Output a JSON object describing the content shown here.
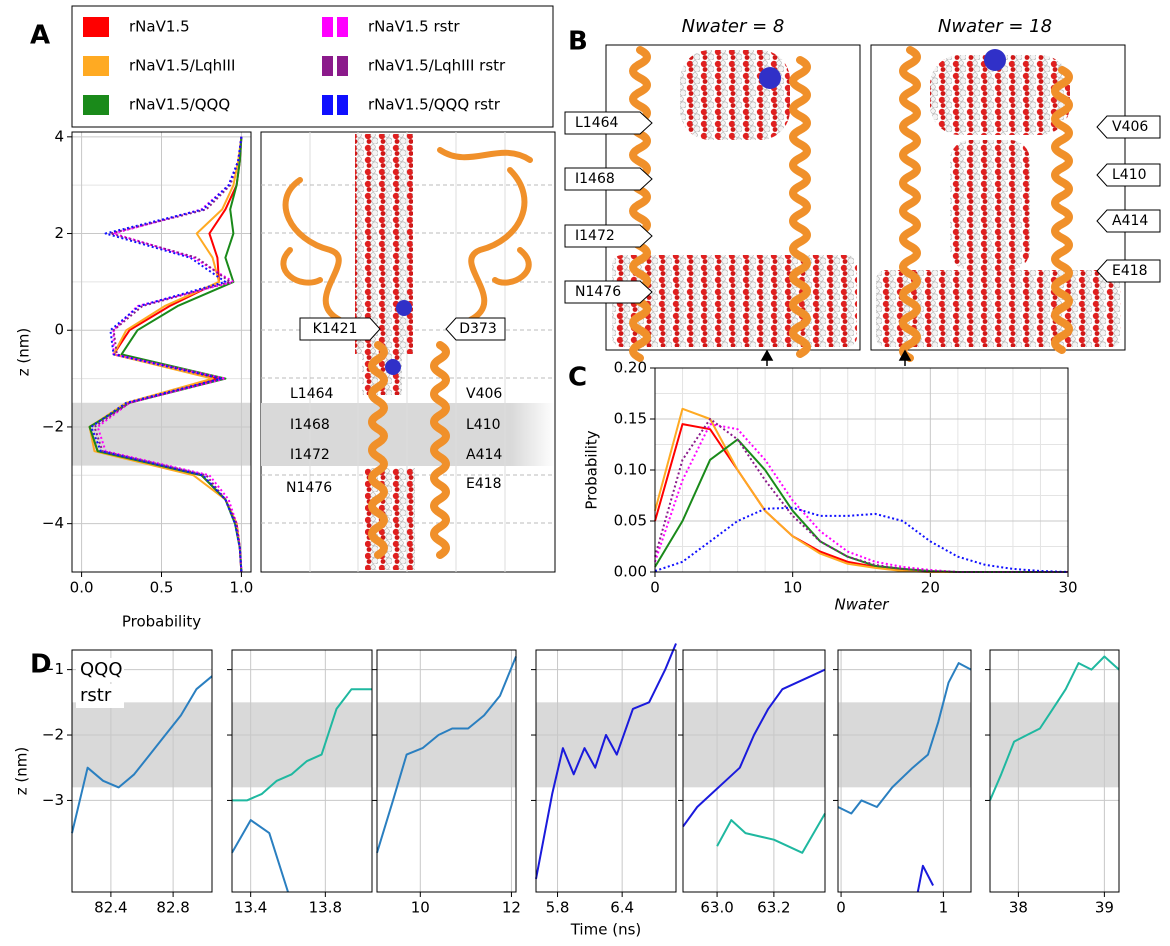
{
  "figure": {
    "panel_labels": [
      "A",
      "B",
      "C",
      "D"
    ],
    "panel_a_image": {
      "pore_labels": [
        "K1421",
        "D373"
      ],
      "left_labels": [
        "L1464",
        "I1468",
        "I1472",
        "N1476"
      ],
      "right_labels": [
        "V406",
        "L410",
        "A414",
        "E418"
      ]
    },
    "panel_b_images": [
      {
        "title": "Nwater = 8",
        "labels": [
          "L1464",
          "I1468",
          "I1472",
          "N1476"
        ]
      },
      {
        "title": "Nwater = 18",
        "labels": [
          "V406",
          "L410",
          "A414",
          "E418"
        ]
      }
    ]
  },
  "chart_data": [
    {
      "type": "line",
      "orientation": "horizontal",
      "x_label": "Probability",
      "y_label": "z (nm)",
      "y": [
        4,
        3.5,
        3,
        2.5,
        2,
        1.5,
        1,
        0.5,
        0,
        -0.5,
        -1,
        -1.5,
        -2,
        -2.5,
        -3,
        -3.5,
        -4,
        -4.5,
        -5
      ],
      "series": [
        {
          "name": "rNaV1.5",
          "color": "#ff0000",
          "line_style": "solid",
          "values": [
            1,
            0.99,
            0.97,
            0.9,
            0.8,
            0.85,
            0.86,
            0.55,
            0.3,
            0.2,
            0.85,
            0.3,
            0.05,
            0.1,
            0.75,
            0.9,
            0.97,
            0.99,
            1
          ]
        },
        {
          "name": "rNaV1.5/LqhIII",
          "color": "#ffaa22",
          "line_style": "solid",
          "values": [
            1,
            0.98,
            0.95,
            0.88,
            0.72,
            0.82,
            0.86,
            0.52,
            0.28,
            0.2,
            0.82,
            0.28,
            0.05,
            0.08,
            0.7,
            0.9,
            0.97,
            0.99,
            1
          ]
        },
        {
          "name": "rNaV1.5/QQQ",
          "color": "#1a8a1a",
          "line_style": "solid",
          "values": [
            1,
            0.99,
            0.97,
            0.93,
            0.95,
            0.9,
            0.95,
            0.6,
            0.35,
            0.25,
            0.9,
            0.3,
            0.05,
            0.1,
            0.75,
            0.9,
            0.96,
            0.99,
            1
          ]
        },
        {
          "name": "rNaV1.5 rstr",
          "color": "#ff00ff",
          "line_style": "dotted",
          "values": [
            1,
            0.98,
            0.92,
            0.75,
            0.2,
            0.7,
            0.95,
            0.35,
            0.2,
            0.2,
            0.9,
            0.3,
            0.1,
            0.15,
            0.8,
            0.92,
            0.97,
            0.99,
            1
          ]
        },
        {
          "name": "rNaV1.5/LqhIII rstr",
          "color": "#8b1a8b",
          "line_style": "dotted",
          "values": [
            1,
            0.98,
            0.93,
            0.78,
            0.18,
            0.72,
            0.93,
            0.38,
            0.2,
            0.22,
            0.88,
            0.3,
            0.08,
            0.13,
            0.78,
            0.9,
            0.97,
            0.99,
            1
          ]
        },
        {
          "name": "rNaV1.5/QQQ rstr",
          "color": "#1010ff",
          "line_style": "dotted",
          "values": [
            1,
            0.98,
            0.92,
            0.76,
            0.15,
            0.68,
            0.9,
            0.36,
            0.18,
            0.2,
            0.87,
            0.28,
            0.06,
            0.12,
            0.76,
            0.9,
            0.96,
            0.99,
            1
          ]
        }
      ],
      "xlim": [
        -0.06,
        1.06
      ],
      "xticks": [
        {
          "value": 0,
          "label": "0.0"
        },
        0.5,
        {
          "value": 1,
          "label": "1.0"
        }
      ],
      "ylim": [
        -5,
        4.1
      ],
      "yticks": [
        {
          "value": -4,
          "label": "−4"
        },
        {
          "value": -2,
          "label": "−2"
        },
        0,
        2,
        4
      ],
      "y_minor_ticks": [
        -3,
        -1,
        1,
        3
      ],
      "band": [
        -2.8,
        -1.5
      ],
      "grid": true
    },
    {
      "type": "line",
      "x_label": "Nwater",
      "y_label": "Probability",
      "x": [
        0,
        2,
        4,
        6,
        8,
        10,
        12,
        14,
        16,
        18,
        20,
        22,
        24,
        26,
        28,
        30
      ],
      "series": [
        {
          "color": "#ff0000",
          "line_style": "solid",
          "values": [
            0.05,
            0.145,
            0.14,
            0.1,
            0.06,
            0.035,
            0.02,
            0.01,
            0.005,
            0.002,
            0,
            0,
            0,
            0,
            0,
            0
          ]
        },
        {
          "color": "#ffaa22",
          "line_style": "solid",
          "values": [
            0.06,
            0.16,
            0.15,
            0.1,
            0.06,
            0.035,
            0.018,
            0.008,
            0.004,
            0.001,
            0,
            0,
            0,
            0,
            0,
            0
          ]
        },
        {
          "color": "#1a8a1a",
          "line_style": "solid",
          "values": [
            0.005,
            0.05,
            0.11,
            0.13,
            0.1,
            0.06,
            0.03,
            0.015,
            0.006,
            0.003,
            0.001,
            0,
            0,
            0,
            0,
            0
          ]
        },
        {
          "color": "#ff00ff",
          "line_style": "dotted",
          "values": [
            0.01,
            0.09,
            0.145,
            0.14,
            0.11,
            0.07,
            0.04,
            0.02,
            0.01,
            0.005,
            0.002,
            0,
            0,
            0,
            0,
            0
          ]
        },
        {
          "color": "#8b1a8b",
          "line_style": "dotted",
          "values": [
            0.015,
            0.11,
            0.15,
            0.13,
            0.09,
            0.055,
            0.03,
            0.015,
            0.007,
            0.003,
            0.001,
            0,
            0,
            0,
            0,
            0
          ]
        },
        {
          "color": "#1010ff",
          "line_style": "dotted",
          "values": [
            0.001,
            0.01,
            0.03,
            0.05,
            0.062,
            0.063,
            0.055,
            0.055,
            0.057,
            0.05,
            0.03,
            0.015,
            0.007,
            0.003,
            0.001,
            0
          ]
        }
      ],
      "xlim": [
        0,
        30
      ],
      "xticks": [
        0,
        10,
        20,
        30
      ],
      "ylim": [
        0,
        0.2
      ],
      "yticks": [
        {
          "value": 0,
          "label": "0.00"
        },
        0.05,
        {
          "value": 0.1,
          "label": "0.10"
        },
        0.15,
        {
          "value": 0.2,
          "label": "0.20"
        }
      ],
      "x_minor_ticks": [
        2,
        4,
        6,
        8,
        12,
        14,
        16,
        18,
        22,
        24,
        26,
        28
      ],
      "y_minor_ticks": [
        0.025,
        0.075,
        0.125,
        0.175
      ],
      "grid": true
    },
    {
      "type": "line",
      "y_label": "z (nm)",
      "annotation": [
        "QQQ",
        "rstr"
      ],
      "series": [
        {
          "color": "#2a7fc0",
          "x": [
            82.15,
            82.25,
            82.35,
            82.45,
            82.55,
            82.65,
            82.75,
            82.85,
            82.95,
            83.05
          ],
          "values": [
            -3.5,
            -2.5,
            -2.7,
            -2.8,
            -2.6,
            -2.3,
            -2.0,
            -1.7,
            -1.3,
            -1.1
          ]
        }
      ],
      "xlim": [
        82.15,
        83.05
      ],
      "xticks": [
        82.4,
        82.8
      ],
      "ylim": [
        -4.4,
        -0.7
      ],
      "yticks": [
        {
          "value": -3,
          "label": "−3"
        },
        {
          "value": -2,
          "label": "−2"
        },
        {
          "value": -1,
          "label": "−1"
        }
      ],
      "band": [
        -2.8,
        -1.5
      ],
      "grid": true
    },
    {
      "type": "line",
      "series": [
        {
          "color": "#1fb8a0",
          "x": [
            13.3,
            13.38,
            13.46,
            13.54,
            13.62,
            13.7,
            13.78,
            13.86,
            13.94,
            14.05
          ],
          "values": [
            -3.0,
            -3.0,
            -2.9,
            -2.7,
            -2.6,
            -2.4,
            -2.3,
            -1.6,
            -1.3,
            -1.3
          ]
        },
        {
          "color": "#2a7fc0",
          "x": [
            13.3,
            13.4,
            13.5,
            13.6
          ],
          "values": [
            -3.8,
            -3.3,
            -3.5,
            -4.4
          ]
        }
      ],
      "xlim": [
        13.3,
        14.05
      ],
      "xticks": [
        13.4,
        13.8
      ],
      "ylim": [
        -4.4,
        -0.7
      ],
      "yticks": [
        -3,
        -2,
        -1
      ],
      "show_ytick_labels": false,
      "band": [
        -2.8,
        -1.5
      ],
      "grid": true
    },
    {
      "type": "line",
      "series": [
        {
          "color": "#2a7fc0",
          "x": [
            9.05,
            9.4,
            9.7,
            10.05,
            10.4,
            10.7,
            11.05,
            11.4,
            11.75,
            12.1
          ],
          "values": [
            -3.8,
            -3.0,
            -2.3,
            -2.2,
            -2.0,
            -1.9,
            -1.9,
            -1.7,
            -1.4,
            -0.8
          ]
        }
      ],
      "xlim": [
        9.05,
        12.1
      ],
      "xticks": [
        10,
        12
      ],
      "ylim": [
        -4.4,
        -0.7
      ],
      "yticks": [
        -3,
        -2,
        -1
      ],
      "show_ytick_labels": false,
      "band": [
        -2.8,
        -1.5
      ],
      "grid": true
    },
    {
      "type": "line",
      "x_label": "Time (ns)",
      "series": [
        {
          "color": "#1a1adc",
          "x": [
            5.6,
            5.75,
            5.85,
            5.95,
            6.05,
            6.15,
            6.25,
            6.35,
            6.5,
            6.65,
            6.8,
            6.9
          ],
          "values": [
            -4.2,
            -2.9,
            -2.2,
            -2.6,
            -2.2,
            -2.5,
            -2.0,
            -2.3,
            -1.6,
            -1.5,
            -1.0,
            -0.6
          ]
        }
      ],
      "xlim": [
        5.6,
        6.9
      ],
      "xticks": [
        5.8,
        6.4
      ],
      "ylim": [
        -4.4,
        -0.7
      ],
      "yticks": [
        -3,
        -2,
        -1
      ],
      "show_ytick_labels": false,
      "band": [
        -2.8,
        -1.5
      ],
      "grid": true
    },
    {
      "type": "line",
      "series": [
        {
          "color": "#1a1adc",
          "x": [
            62.88,
            62.93,
            62.98,
            63.03,
            63.08,
            63.13,
            63.18,
            63.23,
            63.28,
            63.33,
            63.38
          ],
          "values": [
            -3.4,
            -3.1,
            -2.9,
            -2.7,
            -2.5,
            -2.0,
            -1.6,
            -1.3,
            -1.2,
            -1.1,
            -1.0
          ]
        },
        {
          "color": "#1fb8a0",
          "x": [
            63.0,
            63.05,
            63.1,
            63.2,
            63.3,
            63.38
          ],
          "values": [
            -3.7,
            -3.3,
            -3.5,
            -3.6,
            -3.8,
            -3.2
          ]
        }
      ],
      "xlim": [
        62.88,
        63.38
      ],
      "xticks": [
        {
          "value": 63,
          "label": "63.0"
        },
        63.2
      ],
      "ylim": [
        -4.4,
        -0.7
      ],
      "yticks": [
        -3,
        -2,
        -1
      ],
      "show_ytick_labels": false,
      "band": [
        -2.8,
        -1.5
      ],
      "grid": true
    },
    {
      "type": "line",
      "series": [
        {
          "color": "#2a7fc0",
          "x": [
            -0.03,
            0.1,
            0.2,
            0.35,
            0.5,
            0.7,
            0.85,
            0.95,
            1.05,
            1.15,
            1.27
          ],
          "values": [
            -3.1,
            -3.2,
            -3.0,
            -3.1,
            -2.8,
            -2.5,
            -2.3,
            -1.8,
            -1.2,
            -0.9,
            -1.0
          ]
        },
        {
          "color": "#1a1adc",
          "x": [
            0.75,
            0.8,
            0.9
          ],
          "values": [
            -4.4,
            -4.0,
            -4.3
          ]
        }
      ],
      "xlim": [
        -0.03,
        1.27
      ],
      "xticks": [
        0,
        1
      ],
      "ylim": [
        -4.4,
        -0.7
      ],
      "yticks": [
        -3,
        -2,
        -1
      ],
      "show_ytick_labels": false,
      "band": [
        -2.8,
        -1.5
      ],
      "grid": true
    },
    {
      "type": "line",
      "series": [
        {
          "color": "#1fb8a0",
          "x": [
            37.67,
            37.8,
            37.95,
            38.1,
            38.25,
            38.4,
            38.55,
            38.7,
            38.85,
            39.0,
            39.17
          ],
          "values": [
            -3.0,
            -2.6,
            -2.1,
            -2.0,
            -1.9,
            -1.6,
            -1.3,
            -0.9,
            -1.0,
            -0.8,
            -1.0
          ]
        }
      ],
      "xlim": [
        37.67,
        39.17
      ],
      "xticks": [
        38,
        39
      ],
      "ylim": [
        -4.4,
        -0.7
      ],
      "yticks": [
        -3,
        -2,
        -1
      ],
      "show_ytick_labels": false,
      "band": [
        -2.8,
        -1.5
      ],
      "grid": true
    }
  ]
}
